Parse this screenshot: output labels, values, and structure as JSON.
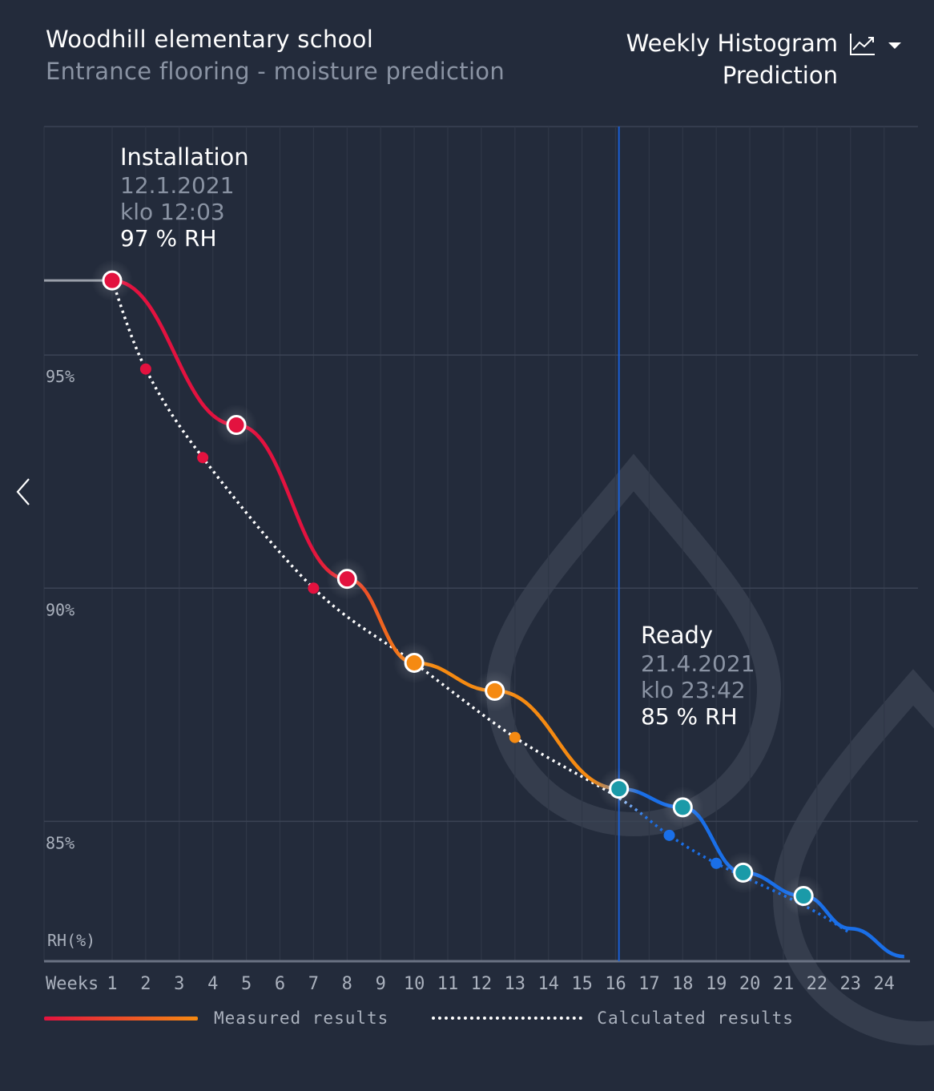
{
  "header": {
    "title": "Woodhill elementary school",
    "subtitle": "Entrance flooring - moisture prediction",
    "view_label_line1": "Weekly Histogram",
    "view_label_line2": "Prediction"
  },
  "annotations": {
    "installation": {
      "title": "Installation",
      "date": "12.1.2021",
      "time": "klo 12:03",
      "value": "97 % RH"
    },
    "ready": {
      "title": "Ready",
      "date": "21.4.2021",
      "time": "klo 23:42",
      "value": "85 % RH"
    }
  },
  "legend": {
    "measured": "Measured results",
    "calculated": "Calculated results"
  },
  "colors": {
    "background": "#232b3b",
    "measured_start": "#e3123f",
    "measured_mid": "#f58a12",
    "measured_end": "#1a6fe8",
    "ready_line": "#1a5fd6",
    "teal_point": "#1a9aa8"
  },
  "chart_data": {
    "type": "line",
    "xlabel": "Weeks",
    "ylabel": "RH(%)",
    "y_ticks": [
      95,
      90,
      85
    ],
    "y_tick_labels": [
      "95%",
      "90%",
      "85%"
    ],
    "x_ticks": [
      "1",
      "2",
      "3",
      "4",
      "5",
      "6",
      "7",
      "8",
      "9",
      "10",
      "11",
      "12",
      "13",
      "14",
      "15",
      "16",
      "17",
      "18",
      "19",
      "20",
      "21",
      "22",
      "23",
      "24"
    ],
    "ylim": [
      82.0,
      99.9
    ],
    "xlim": [
      0,
      25
    ],
    "grid": true,
    "legend_position": "bottom",
    "ready_week": 16.1,
    "series": [
      {
        "name": "Measured results",
        "style": "solid",
        "points": [
          {
            "x": 1.0,
            "y": 96.6
          },
          {
            "x": 4.7,
            "y": 93.5
          },
          {
            "x": 8.0,
            "y": 90.2
          },
          {
            "x": 10.0,
            "y": 88.4
          },
          {
            "x": 12.4,
            "y": 87.8
          },
          {
            "x": 16.1,
            "y": 85.7
          },
          {
            "x": 18.0,
            "y": 85.3
          },
          {
            "x": 19.8,
            "y": 83.9
          },
          {
            "x": 21.6,
            "y": 83.4
          }
        ],
        "tail": [
          {
            "x": 23.0,
            "y": 82.7
          },
          {
            "x": 24.6,
            "y": 82.1
          }
        ]
      },
      {
        "name": "Calculated results",
        "style": "dotted",
        "points": [
          {
            "x": 1.0,
            "y": 96.6
          },
          {
            "x": 2.0,
            "y": 94.7
          },
          {
            "x": 3.7,
            "y": 92.8
          },
          {
            "x": 7.0,
            "y": 90.0
          },
          {
            "x": 10.0,
            "y": 88.4
          },
          {
            "x": 13.0,
            "y": 86.8
          },
          {
            "x": 16.1,
            "y": 85.5
          },
          {
            "x": 17.6,
            "y": 84.7
          },
          {
            "x": 19.0,
            "y": 84.1
          },
          {
            "x": 21.6,
            "y": 83.2
          },
          {
            "x": 23.0,
            "y": 82.6
          }
        ]
      }
    ]
  }
}
